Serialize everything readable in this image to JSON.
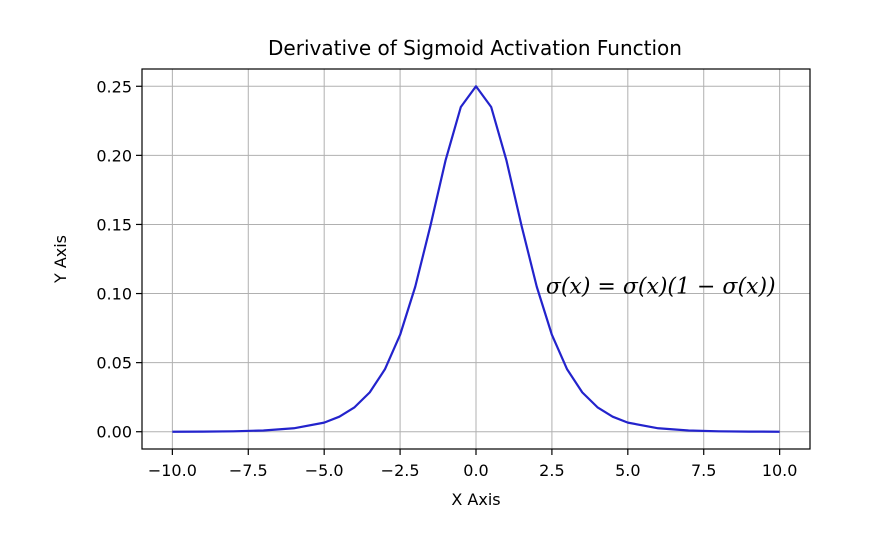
{
  "chart_data": {
    "type": "line",
    "title": "Derivative of Sigmoid Activation Function",
    "xlabel": "X Axis",
    "ylabel": "Y Axis",
    "xlim": [
      -11.0,
      11.0
    ],
    "ylim": [
      -0.0125,
      0.2625
    ],
    "xticks": [
      -10.0,
      -7.5,
      -5.0,
      -2.5,
      0.0,
      2.5,
      5.0,
      7.5,
      10.0
    ],
    "xtick_labels": [
      "−10.0",
      "−7.5",
      "−5.0",
      "−2.5",
      "0.0",
      "2.5",
      "5.0",
      "7.5",
      "10.0"
    ],
    "yticks": [
      0.0,
      0.05,
      0.1,
      0.15,
      0.2,
      0.25
    ],
    "ytick_labels": [
      "0.00",
      "0.05",
      "0.10",
      "0.15",
      "0.20",
      "0.25"
    ],
    "grid": true,
    "series": [
      {
        "color": "#2323cc",
        "x": [
          -10.0,
          -9.0,
          -8.0,
          -7.0,
          -6.0,
          -5.0,
          -4.5,
          -4.0,
          -3.5,
          -3.0,
          -2.5,
          -2.0,
          -1.5,
          -1.0,
          -0.5,
          0.0,
          0.5,
          1.0,
          1.5,
          2.0,
          2.5,
          3.0,
          3.5,
          4.0,
          4.5,
          5.0,
          6.0,
          7.0,
          8.0,
          9.0,
          10.0
        ],
        "y": [
          0.0,
          0.0001,
          0.0003,
          0.0009,
          0.0025,
          0.0066,
          0.0109,
          0.0177,
          0.0285,
          0.0452,
          0.0701,
          0.105,
          0.1491,
          0.1966,
          0.235,
          0.25,
          0.235,
          0.1966,
          0.1491,
          0.105,
          0.0701,
          0.0452,
          0.0285,
          0.0177,
          0.0109,
          0.0066,
          0.0025,
          0.0009,
          0.0003,
          0.0001,
          0.0
        ]
      }
    ],
    "annotation": {
      "text": "σ(x)  = σ(x)(1 − σ(x))",
      "x": 2.3,
      "y": 0.1
    }
  }
}
